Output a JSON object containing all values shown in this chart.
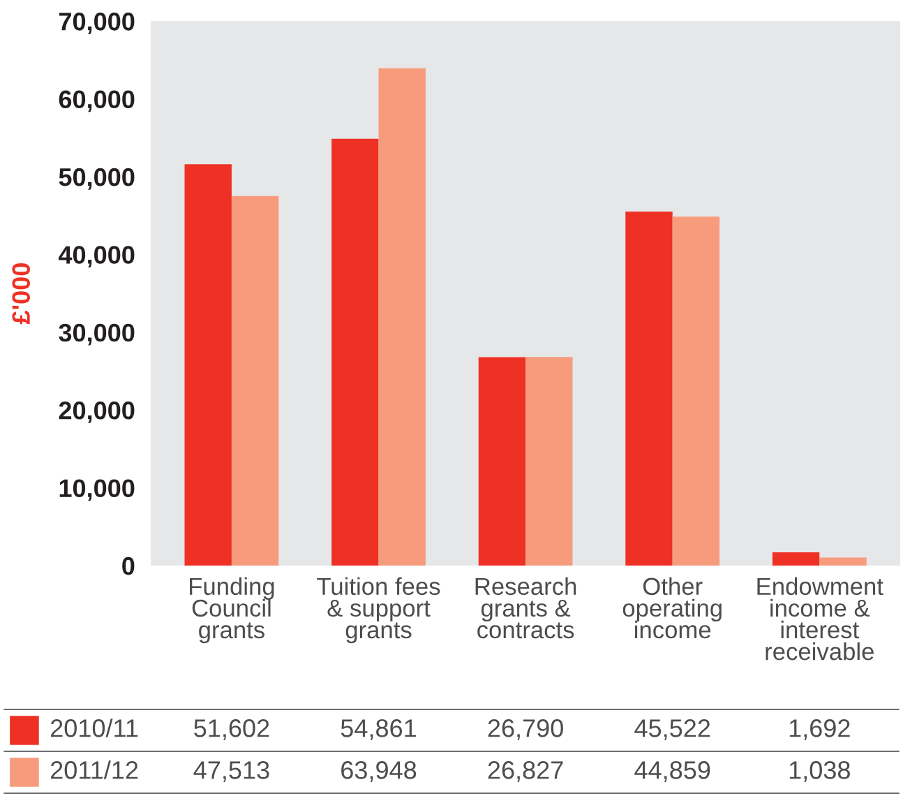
{
  "chart_data": {
    "type": "bar",
    "ylabel": "£'000",
    "categories": [
      "Funding\nCouncil\ngrants",
      "Tuition fees\n& support\ngrants",
      "Research\ngrants &\ncontracts",
      "Other\noperating\nincome",
      "Endowment\nincome &\ninterest\nreceivable"
    ],
    "series": [
      {
        "name": "2010/11",
        "color": "#ee3124",
        "values": [
          51602,
          54861,
          26790,
          45522,
          1692
        ],
        "value_labels": [
          "51,602",
          "54,861",
          "26,790",
          "45,522",
          "1,692"
        ]
      },
      {
        "name": "2011/12",
        "color": "#f69c7c",
        "values": [
          47513,
          63948,
          26827,
          44859,
          1038
        ],
        "value_labels": [
          "47,513",
          "63,948",
          "26,827",
          "44,859",
          "1,038"
        ]
      }
    ],
    "ylim": [
      0,
      70000
    ],
    "yticks": [
      {
        "value": 0,
        "label": "0"
      },
      {
        "value": 10000,
        "label": "10,000"
      },
      {
        "value": 20000,
        "label": "20,000"
      },
      {
        "value": 30000,
        "label": "30,000"
      },
      {
        "value": 40000,
        "label": "40,000"
      },
      {
        "value": 50000,
        "label": "50,000"
      },
      {
        "value": 60000,
        "label": "60,000"
      },
      {
        "value": 70000,
        "label": "70,000"
      }
    ],
    "legend": "bottom"
  }
}
